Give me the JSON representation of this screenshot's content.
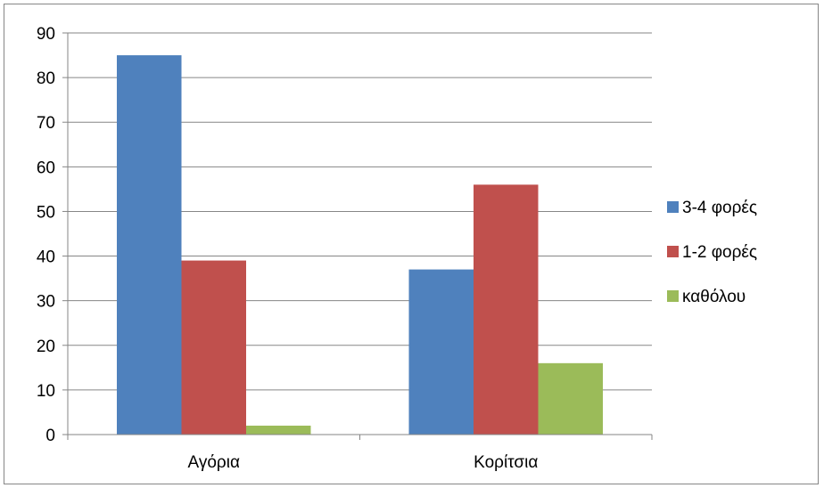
{
  "chart_data": {
    "type": "bar",
    "title": "",
    "xlabel": "",
    "ylabel": "",
    "categories": [
      "Αγόρια",
      "Κορίτσια"
    ],
    "series": [
      {
        "name": "3-4 φορές",
        "values": [
          85,
          37
        ],
        "color": "#4f81bd"
      },
      {
        "name": "1-2 φορές",
        "values": [
          39,
          56
        ],
        "color": "#c0504d"
      },
      {
        "name": "καθόλου",
        "values": [
          2,
          16
        ],
        "color": "#9bbb59"
      }
    ],
    "ylim": [
      0,
      90
    ],
    "yticks": [
      0,
      10,
      20,
      30,
      40,
      50,
      60,
      70,
      80,
      90
    ],
    "grid": true,
    "legend_position": "right"
  }
}
